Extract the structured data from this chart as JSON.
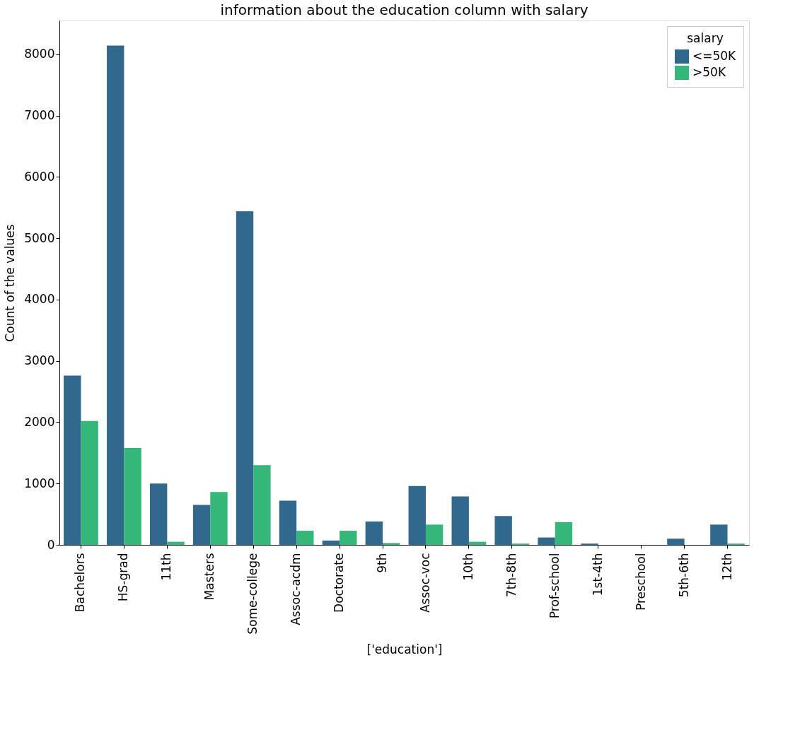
{
  "chart_data": {
    "type": "bar",
    "title": "information about the education column with salary",
    "xlabel": "['education']",
    "ylabel": "Count of the values",
    "legend_title": "salary",
    "categories": [
      "Bachelors",
      "HS-grad",
      "11th",
      "Masters",
      "Some-college",
      "Assoc-acdm",
      "Doctorate",
      "9th",
      "Assoc-voc",
      "10th",
      "7th-8th",
      "Prof-school",
      "1st-4th",
      "Preschool",
      "5th-6th",
      "12th"
    ],
    "series": [
      {
        "name": "<=50K",
        "color": "#31688e",
        "values": [
          2760,
          8140,
          1000,
          650,
          5440,
          720,
          70,
          380,
          960,
          790,
          470,
          120,
          20,
          0,
          100,
          330
        ]
      },
      {
        "name": ">50K",
        "color": "#35b779",
        "values": [
          2020,
          1580,
          50,
          860,
          1300,
          230,
          230,
          30,
          330,
          50,
          20,
          370,
          0,
          0,
          0,
          20
        ]
      }
    ],
    "ylim": [
      0,
      8550
    ],
    "yticks": [
      0,
      1000,
      2000,
      3000,
      4000,
      5000,
      6000,
      7000,
      8000
    ],
    "grid": false,
    "legend": "top right"
  }
}
